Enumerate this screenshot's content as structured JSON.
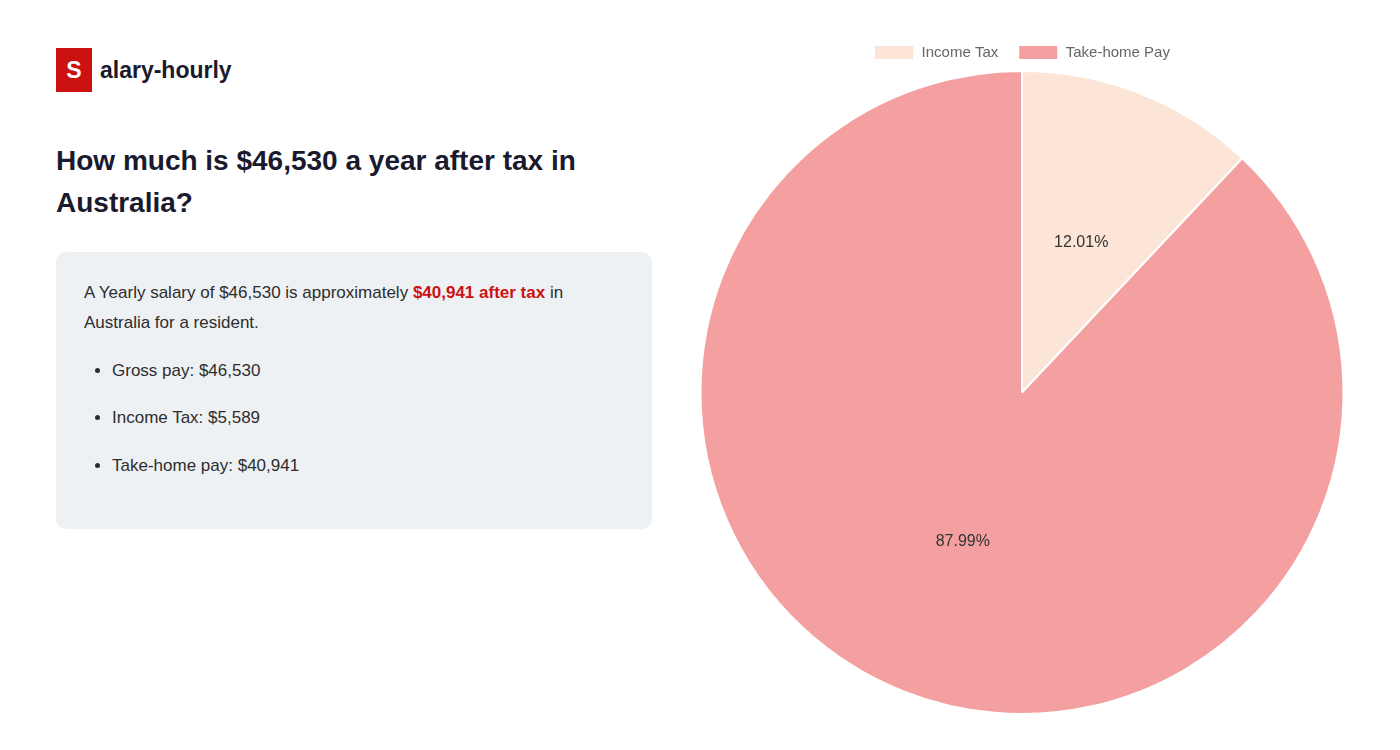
{
  "chart_data": {
    "type": "pie",
    "title": [
      "How much is $46,530 a year after tax in",
      "Australia?"
    ],
    "categories": [
      "Income Tax",
      "Take-home Pay"
    ],
    "values": [
      12.01,
      87.99
    ],
    "value_labels": [
      "12.01%",
      "87.99%"
    ],
    "colors": [
      "#fce4d6",
      "#f4a0a0"
    ],
    "data_labels": true,
    "legend": "top",
    "annotations": [
      [
        {
          "text": "S",
          "color": "#cc1111"
        },
        {
          "text": "alary-hourly"
        }
      ],
      [
        {
          "text": "A Yearly salary of $46,530 is approximately "
        },
        {
          "text": "$40,941 after tax",
          "color": "#cc1111"
        },
        {
          "text": " in"
        }
      ],
      [
        {
          "text": "Australia for a resident."
        }
      ],
      [
        {
          "text": "Gross pay: $46,530"
        }
      ],
      [
        {
          "text": "Income Tax: $5,589"
        }
      ],
      [
        {
          "text": "Take-home pay: $40,941"
        }
      ]
    ]
  }
}
